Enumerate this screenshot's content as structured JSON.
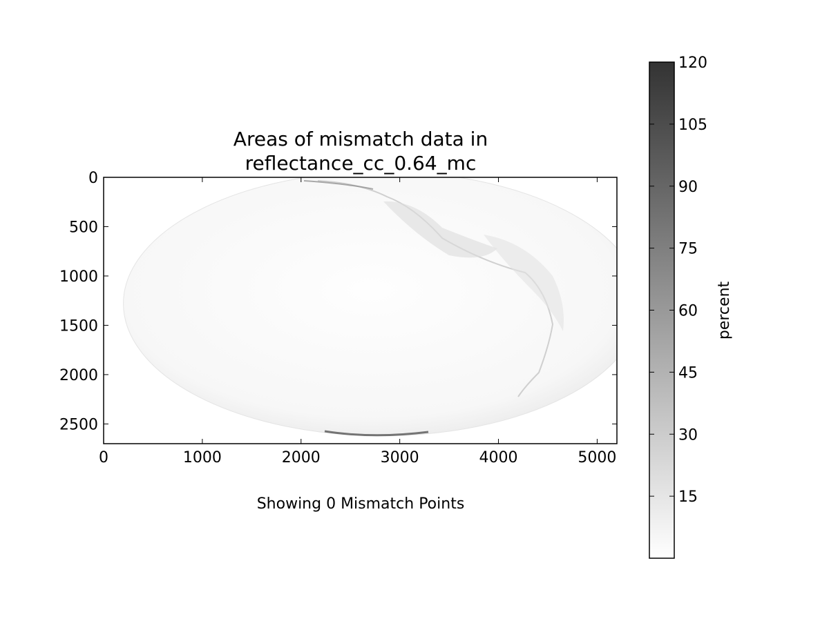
{
  "chart_data": {
    "type": "heatmap",
    "title_lines": [
      "Areas of mismatch data in",
      "reflectance_cc_0.64_mc"
    ],
    "xlabel": "Showing 0 Mismatch Points",
    "ylabel": "",
    "xlim": [
      0,
      5200
    ],
    "ylim": [
      2700,
      0
    ],
    "x_ticks": [
      0,
      1000,
      2000,
      3000,
      4000,
      5000
    ],
    "y_ticks": [
      0,
      500,
      1000,
      1500,
      2000,
      2500
    ],
    "image_extent": {
      "disk_center": [
        2820,
        1280
      ],
      "disk_radii": [
        2620,
        1340
      ]
    },
    "colorbar": {
      "label": "percent",
      "range": [
        0,
        120
      ],
      "ticks": [
        15,
        30,
        45,
        60,
        75,
        90,
        105,
        120
      ],
      "cmap": "Greys"
    },
    "mismatch_points": 0,
    "colors": {
      "cmap_low": "#ffffff",
      "cmap_high": "#333333",
      "axes": "#000000"
    }
  }
}
